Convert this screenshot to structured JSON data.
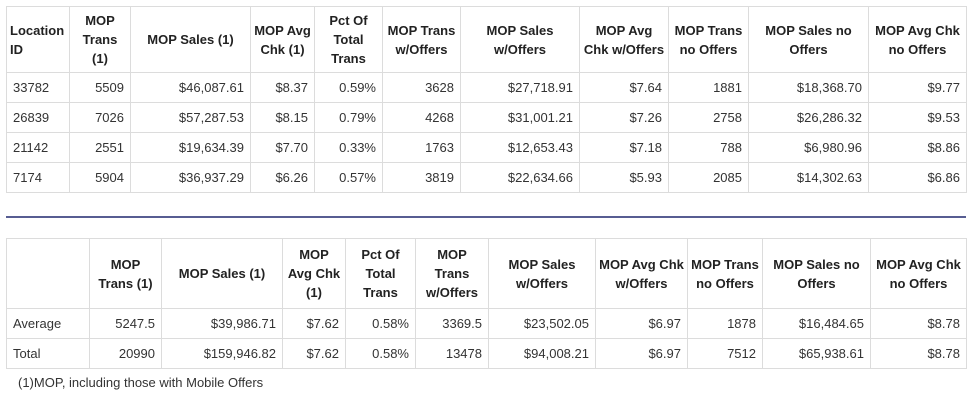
{
  "location_table": {
    "headers": [
      "Location ID",
      "MOP Trans (1)",
      "MOP Sales (1)",
      "MOP Avg Chk (1)",
      "Pct Of Total Trans",
      "MOP Trans w/Offers",
      "MOP Sales w/Offers",
      "MOP Avg Chk w/Offers",
      "MOP Trans no Offers",
      "MOP Sales no Offers",
      "MOP Avg Chk no Offers"
    ],
    "rows": [
      [
        "33782",
        "5509",
        "$46,087.61",
        "$8.37",
        "0.59%",
        "3628",
        "$27,718.91",
        "$7.64",
        "1881",
        "$18,368.70",
        "$9.77"
      ],
      [
        "26839",
        "7026",
        "$57,287.53",
        "$8.15",
        "0.79%",
        "4268",
        "$31,001.21",
        "$7.26",
        "2758",
        "$26,286.32",
        "$9.53"
      ],
      [
        "21142",
        "2551",
        "$19,634.39",
        "$7.70",
        "0.33%",
        "1763",
        "$12,653.43",
        "$7.18",
        "788",
        "$6,980.96",
        "$8.86"
      ],
      [
        "7174",
        "5904",
        "$36,937.29",
        "$6.26",
        "0.57%",
        "3819",
        "$22,634.66",
        "$5.93",
        "2085",
        "$14,302.63",
        "$6.86"
      ]
    ]
  },
  "summary_table": {
    "headers": [
      "",
      "MOP Trans (1)",
      "MOP Sales (1)",
      "MOP Avg Chk (1)",
      "Pct Of Total Trans",
      "MOP Trans w/Offers",
      "MOP Sales w/Offers",
      "MOP Avg Chk w/Offers",
      "MOP Trans no Offers",
      "MOP Sales no Offers",
      "MOP Avg Chk no Offers"
    ],
    "rows": [
      [
        "Average",
        "5247.5",
        "$39,986.71",
        "$7.62",
        "0.58%",
        "3369.5",
        "$23,502.05",
        "$6.97",
        "1878",
        "$16,484.65",
        "$8.78"
      ],
      [
        "Total",
        "20990",
        "$159,946.82",
        "$7.62",
        "0.58%",
        "13478",
        "$94,008.21",
        "$6.97",
        "7512",
        "$65,938.61",
        "$8.78"
      ]
    ]
  },
  "footnote": "(1)MOP, including those with Mobile Offers",
  "colors": {
    "separator": "#575d92",
    "border": "#dcdcdc"
  }
}
